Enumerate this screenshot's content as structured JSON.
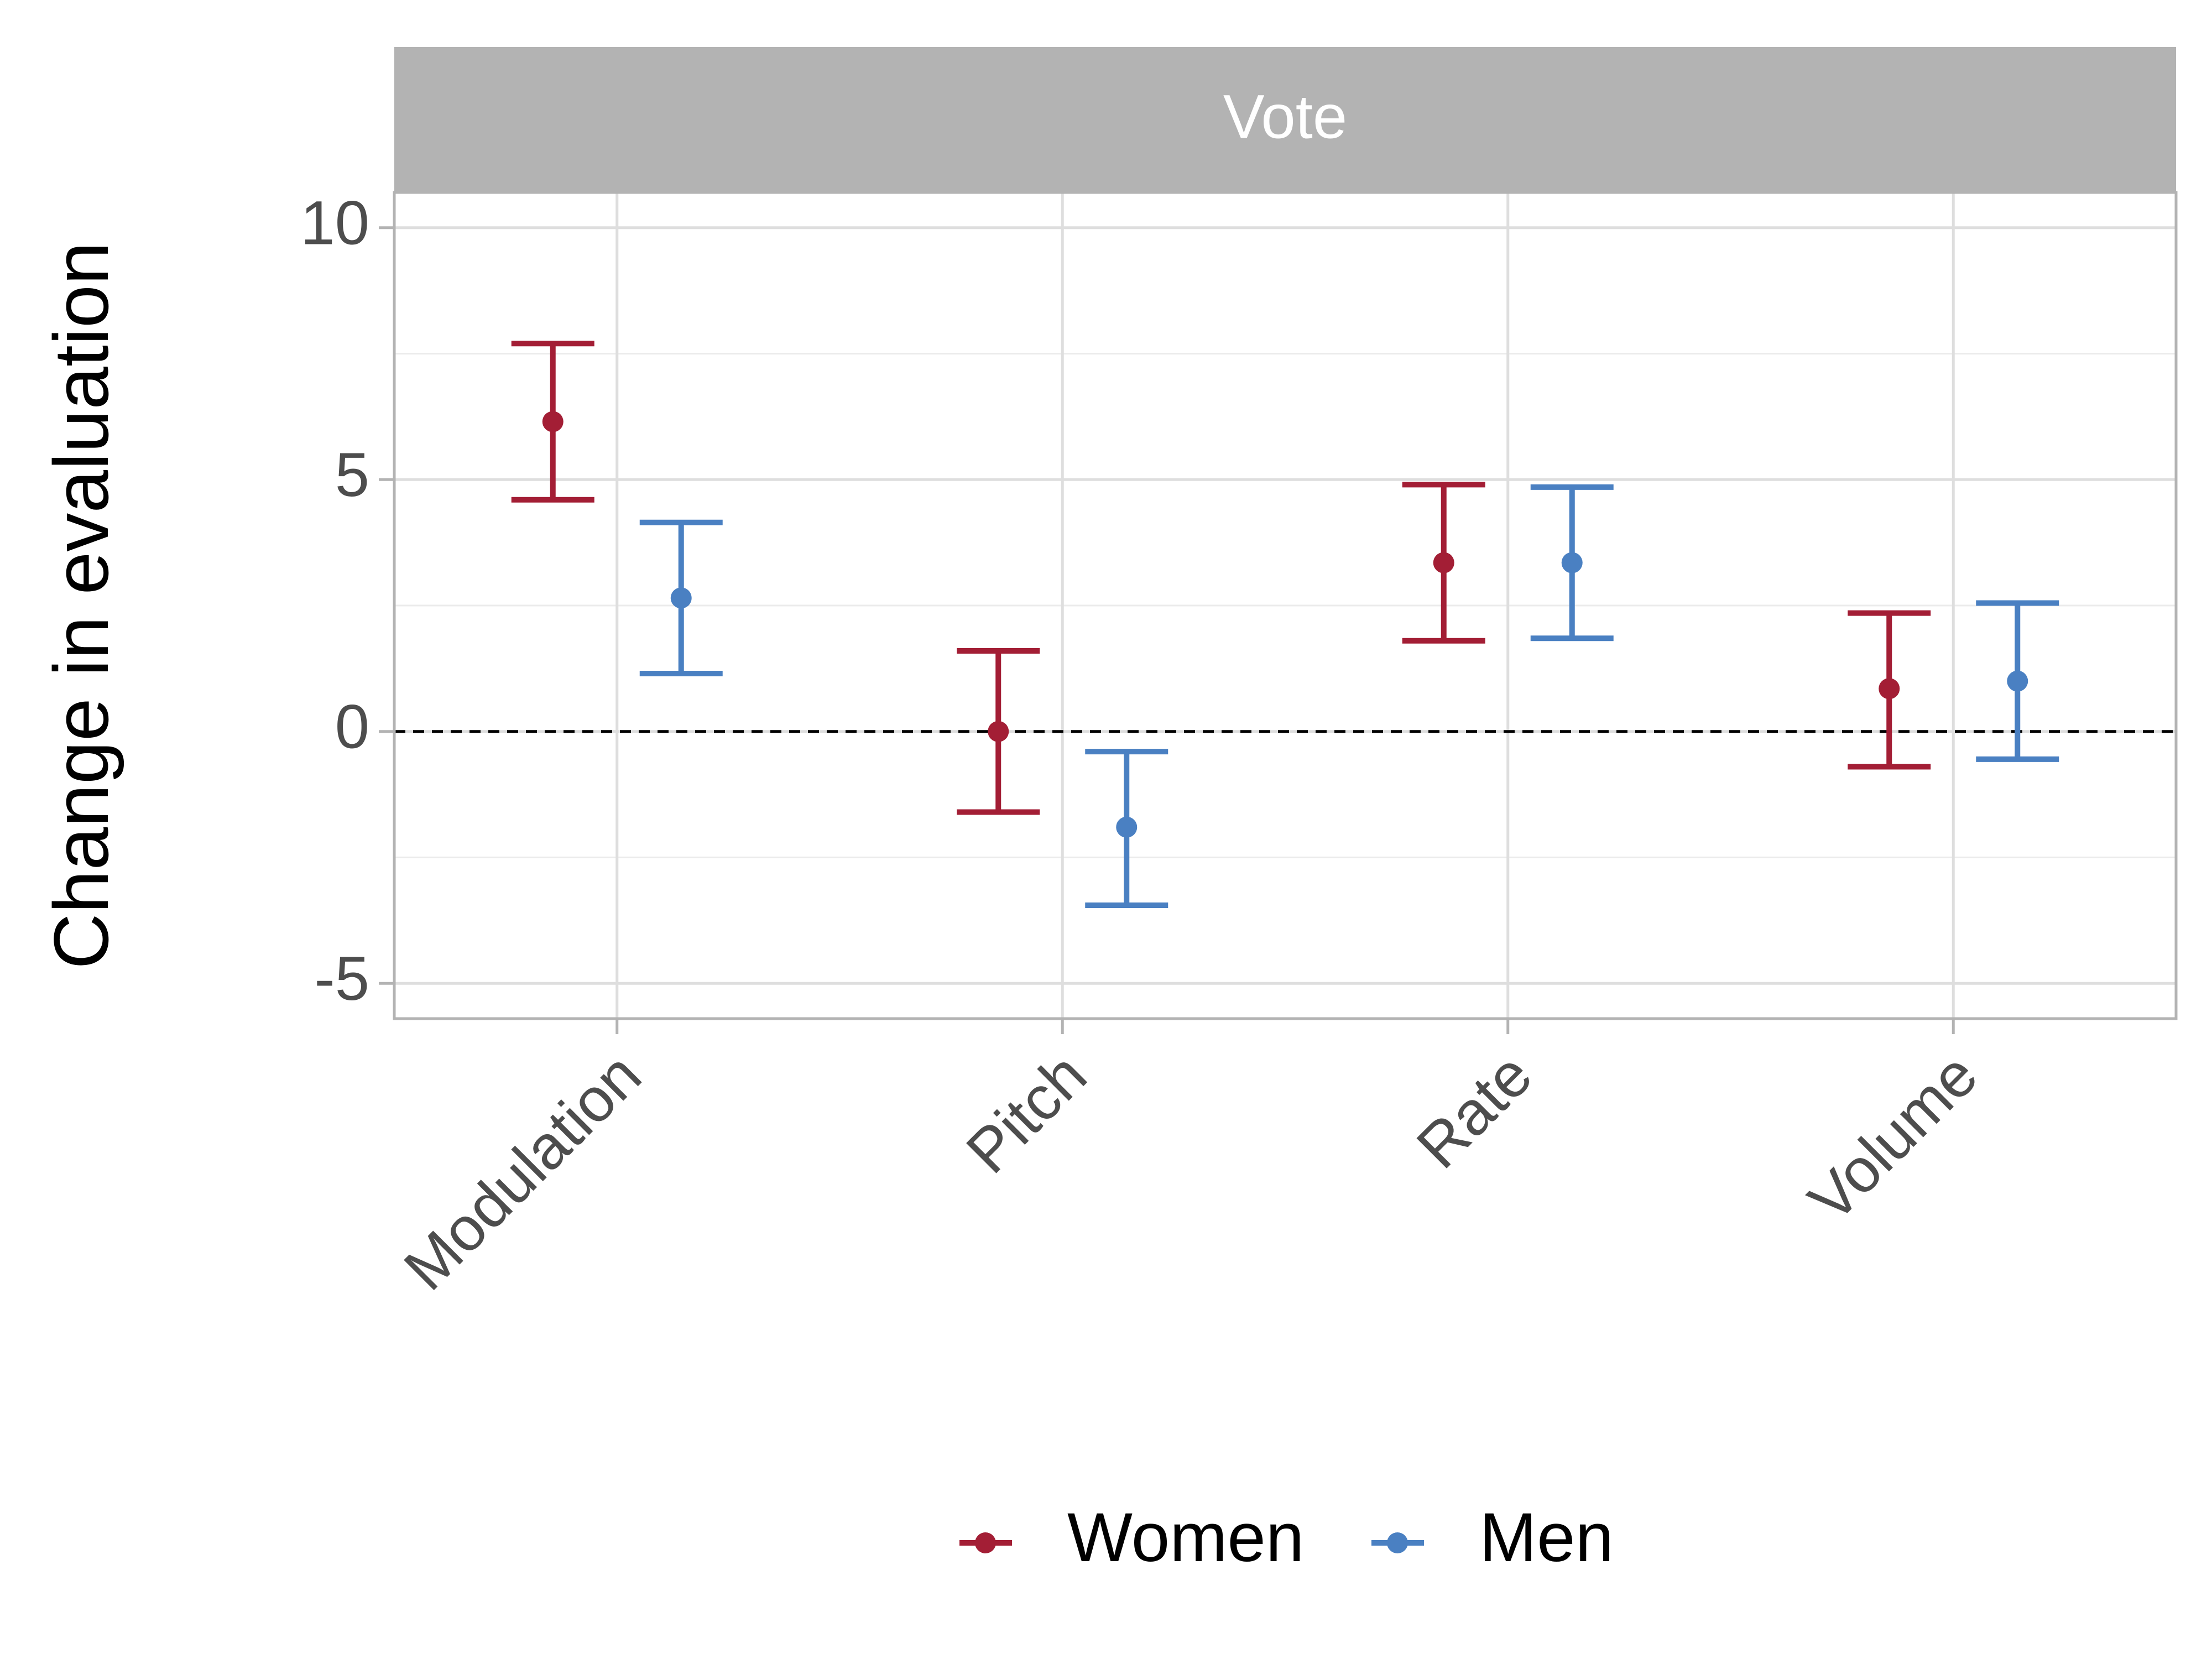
{
  "chart_data": {
    "type": "errorbar",
    "facet_title": "Vote",
    "title": "",
    "xlabel": "",
    "ylabel": "Change in evaluation",
    "categories": [
      "Modulation",
      "Pitch",
      "Rate",
      "Volume"
    ],
    "ylim": [
      -5.7,
      10.7
    ],
    "y_ticks": [
      -5,
      0,
      5,
      10
    ],
    "y_tick_labels": [
      "-5",
      "0",
      "5",
      "10"
    ],
    "reference_line": 0,
    "grid": true,
    "legend_position": "bottom",
    "series": [
      {
        "name": "Women",
        "color": "#a31e35",
        "values": [
          6.15,
          0.0,
          3.35,
          0.85
        ],
        "lower": [
          4.6,
          -1.6,
          1.8,
          -0.7
        ],
        "upper": [
          7.7,
          1.6,
          4.9,
          2.35
        ]
      },
      {
        "name": "Men",
        "color": "#4a80c2",
        "values": [
          2.65,
          -1.9,
          3.35,
          1.0
        ],
        "lower": [
          1.15,
          -3.45,
          1.85,
          -0.55
        ],
        "upper": [
          4.15,
          -0.4,
          4.85,
          2.55
        ]
      }
    ]
  }
}
